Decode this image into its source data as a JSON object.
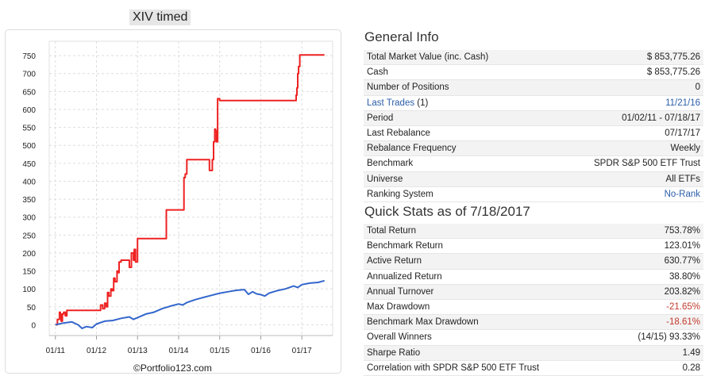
{
  "chart_title": "XIV timed",
  "watermark": "©Portfolio123.com",
  "colors": {
    "strategy": "#ee2222",
    "benchmark": "#3366cc",
    "link": "#2a5ea8",
    "negative": "#c0392b"
  },
  "chart_data": {
    "type": "line",
    "title": "XIV timed",
    "x_ticks": [
      "01/11",
      "01/12",
      "01/13",
      "01/14",
      "01/15",
      "01/16",
      "01/17"
    ],
    "y_ticks": [
      0,
      50,
      100,
      150,
      200,
      250,
      300,
      350,
      400,
      450,
      500,
      550,
      600,
      650,
      700,
      750
    ],
    "ylim": [
      -30,
      790
    ],
    "xlim": [
      2010.85,
      2017.75
    ],
    "grid": true,
    "series": [
      {
        "key": "strategy",
        "x": [
          2011.0,
          2011.05,
          2011.1,
          2011.12,
          2011.14,
          2011.17,
          2011.2,
          2011.24,
          2011.28,
          2011.35,
          2011.6,
          2011.9,
          2012.05,
          2012.07,
          2012.1,
          2012.15,
          2012.2,
          2012.24,
          2012.27,
          2012.3,
          2012.35,
          2012.38,
          2012.42,
          2012.45,
          2012.5,
          2012.52,
          2012.55,
          2012.6,
          2012.65,
          2012.75,
          2012.8,
          2012.85,
          2012.9,
          2012.92,
          2012.95,
          2013.0,
          2013.3,
          2013.5,
          2013.55,
          2013.6,
          2013.7,
          2014.0,
          2014.1,
          2014.13,
          2014.16,
          2014.2,
          2014.3,
          2014.6,
          2014.65,
          2014.7,
          2014.75,
          2014.82,
          2014.85,
          2014.88,
          2014.9,
          2014.92,
          2014.95,
          2015.0,
          2015.5,
          2016.0,
          2016.5,
          2016.85,
          2016.86,
          2016.88,
          2016.9,
          2016.92,
          2016.95,
          2017.0,
          2017.2,
          2017.4,
          2017.55
        ],
        "y": [
          0,
          15,
          35,
          30,
          10,
          30,
          35,
          25,
          40,
          40,
          40,
          40,
          40,
          40,
          55,
          45,
          60,
          50,
          90,
          80,
          100,
          95,
          130,
          120,
          150,
          145,
          175,
          180,
          180,
          180,
          160,
          200,
          180,
          210,
          175,
          240,
          240,
          240,
          240,
          240,
          320,
          320,
          320,
          410,
          420,
          460,
          460,
          460,
          460,
          460,
          430,
          460,
          510,
          545,
          540,
          510,
          630,
          625,
          625,
          625,
          625,
          625,
          640,
          660,
          700,
          720,
          752,
          752,
          752,
          752,
          752
        ]
      },
      {
        "key": "benchmark",
        "x": [
          2011.0,
          2011.2,
          2011.4,
          2011.55,
          2011.65,
          2011.75,
          2011.9,
          2012.0,
          2012.2,
          2012.4,
          2012.6,
          2012.8,
          2012.9,
          2013.0,
          2013.2,
          2013.4,
          2013.6,
          2013.8,
          2014.0,
          2014.1,
          2014.2,
          2014.4,
          2014.6,
          2014.8,
          2015.0,
          2015.2,
          2015.4,
          2015.6,
          2015.7,
          2015.8,
          2015.9,
          2016.0,
          2016.1,
          2016.2,
          2016.4,
          2016.6,
          2016.8,
          2016.9,
          2017.0,
          2017.2,
          2017.4,
          2017.55
        ],
        "y": [
          0,
          5,
          8,
          0,
          -10,
          -5,
          -8,
          2,
          10,
          12,
          18,
          22,
          15,
          20,
          30,
          35,
          45,
          52,
          58,
          55,
          62,
          70,
          76,
          82,
          88,
          92,
          96,
          98,
          85,
          92,
          86,
          84,
          80,
          88,
          95,
          100,
          108,
          104,
          112,
          116,
          118,
          123
        ]
      }
    ]
  },
  "general_info": {
    "title": "General Info",
    "rows": [
      {
        "label": "Total Market Value (inc. Cash)",
        "value": "$ 853,775.26"
      },
      {
        "label": "Cash",
        "value": "$ 853,775.26"
      },
      {
        "label": "Number of Positions",
        "value": "0"
      },
      {
        "label": "Last Trades",
        "label_suffix": " (1)",
        "value": "11/21/16",
        "link": true
      },
      {
        "label": "Period",
        "value": "01/02/11 - 07/18/17"
      },
      {
        "label": "Last Rebalance",
        "value": "07/17/17"
      },
      {
        "label": "Rebalance Frequency",
        "value": "Weekly"
      },
      {
        "label": "Benchmark",
        "value": "SPDR S&P 500 ETF Trust"
      },
      {
        "label": "Universe",
        "value": "All ETFs"
      },
      {
        "label": "Ranking System",
        "value": "No-Rank",
        "value_link": true
      }
    ]
  },
  "quick_stats": {
    "title": "Quick Stats as of 7/18/2017",
    "rows": [
      {
        "label": "Total Return",
        "value": "753.78%"
      },
      {
        "label": "Benchmark Return",
        "value": "123.01%"
      },
      {
        "label": "Active Return",
        "value": "630.77%"
      },
      {
        "label": "Annualized Return",
        "value": "38.80%"
      },
      {
        "label": "Annual Turnover",
        "value": "203.82%"
      },
      {
        "label": "Max Drawdown",
        "value": "-21.65%",
        "negative": true
      },
      {
        "label": "Benchmark Max Drawdown",
        "value": "-18.61%",
        "negative": true
      },
      {
        "label": "Overall Winners",
        "value": "(14/15) 93.33%"
      },
      {
        "label": "Sharpe Ratio",
        "value": "1.49"
      },
      {
        "label": "Correlation with SPDR S&P 500 ETF Trust",
        "value": "0.28"
      }
    ]
  }
}
